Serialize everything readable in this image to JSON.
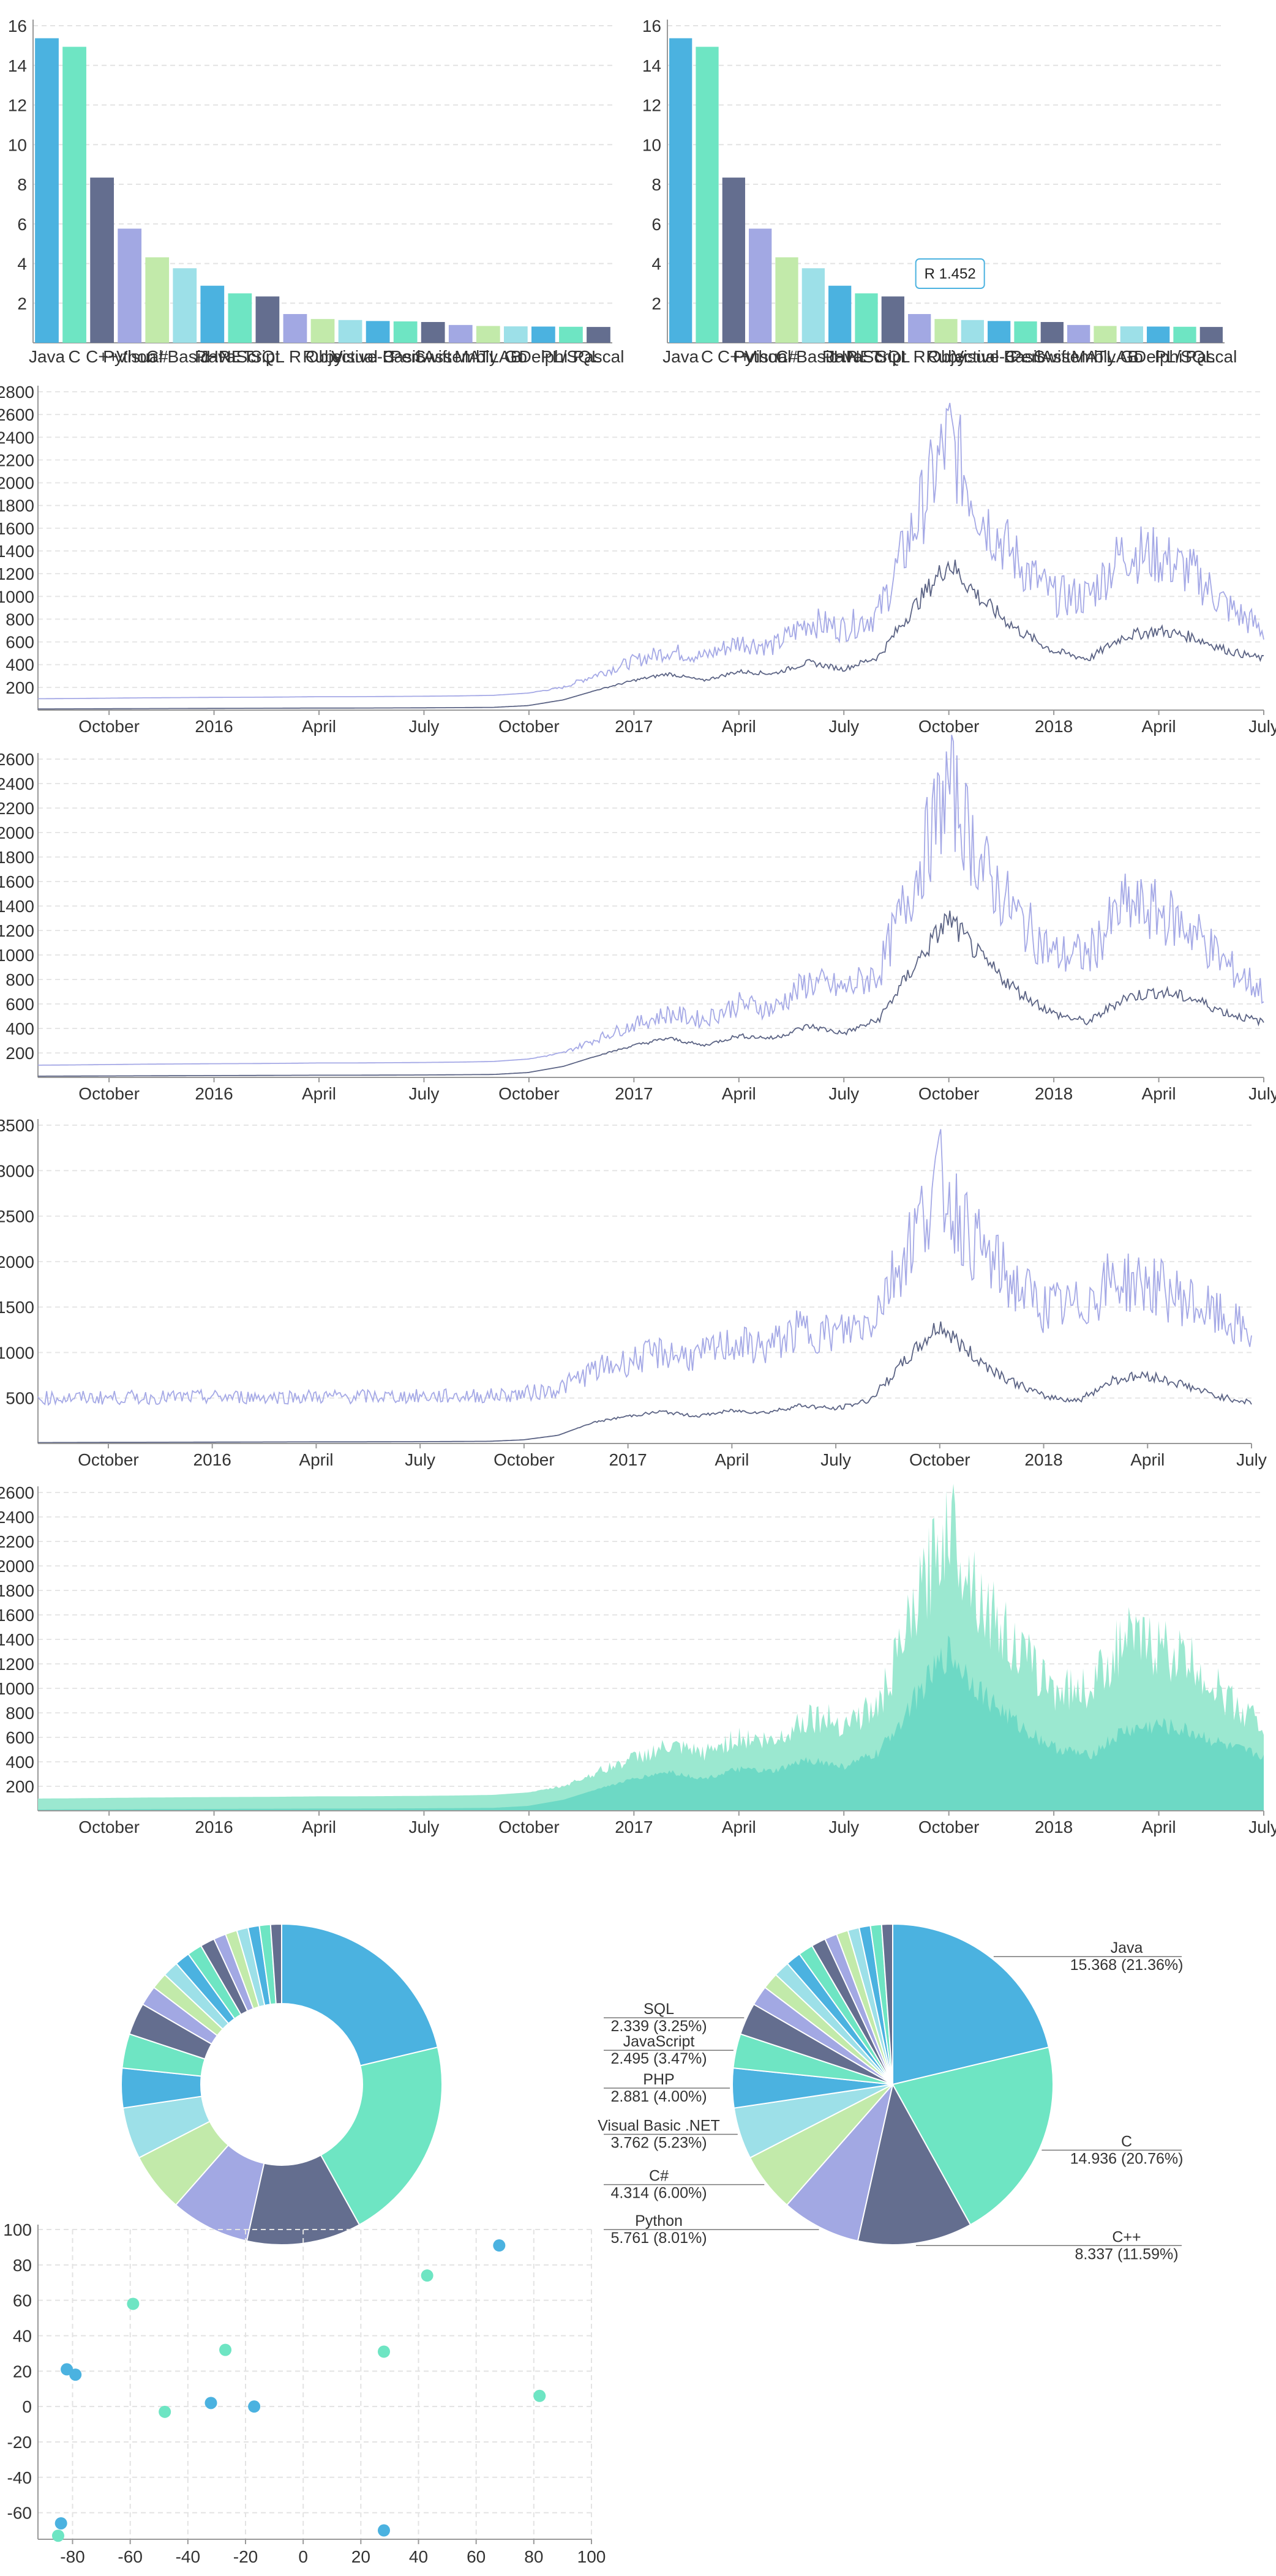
{
  "colors": {
    "palette": [
      "#4bb2e0",
      "#6ee5c3",
      "#646e8f",
      "#a2a8e3",
      "#c2eaaa",
      "#9de0e8"
    ],
    "line_light": "#a5a9e6",
    "line_dark": "#5b6384",
    "area_light": "#9be8d0",
    "area_dark": "#6dd9c5",
    "tooltip_border": "#4bb2e0"
  },
  "tooltip": {
    "label": "R 1.452"
  },
  "languages": [
    {
      "name": "Java",
      "value": 15.368,
      "pct": "21.36%"
    },
    {
      "name": "C",
      "value": 14.936,
      "pct": "20.76%"
    },
    {
      "name": "C++",
      "value": 8.337,
      "pct": "11.59%"
    },
    {
      "name": "Python",
      "value": 5.761,
      "pct": "8.01%"
    },
    {
      "name": "C#",
      "value": 4.314,
      "pct": "6.00%"
    },
    {
      "name": "Visual Basic .NET",
      "value": 3.762,
      "pct": "5.23%"
    },
    {
      "name": "PHP",
      "value": 2.881,
      "pct": "4.00%"
    },
    {
      "name": "JavaScript",
      "value": 2.495,
      "pct": "3.47%"
    },
    {
      "name": "SQL",
      "value": 2.339,
      "pct": "3.25%"
    },
    {
      "name": "R",
      "value": 1.452,
      "pct": ""
    },
    {
      "name": "Ruby",
      "value": 1.2,
      "pct": ""
    },
    {
      "name": "Objective-C",
      "value": 1.15,
      "pct": ""
    },
    {
      "name": "Visual Basic",
      "value": 1.1,
      "pct": ""
    },
    {
      "name": "Perl",
      "value": 1.08,
      "pct": ""
    },
    {
      "name": "Swift",
      "value": 1.05,
      "pct": ""
    },
    {
      "name": "Assembly",
      "value": 0.9,
      "pct": ""
    },
    {
      "name": "MATLAB",
      "value": 0.85,
      "pct": ""
    },
    {
      "name": "Go",
      "value": 0.83,
      "pct": ""
    },
    {
      "name": "Delphi",
      "value": 0.82,
      "pct": ""
    },
    {
      "name": "PL/SQL",
      "value": 0.81,
      "pct": ""
    },
    {
      "name": "Pascal",
      "value": 0.8,
      "pct": ""
    }
  ],
  "chart_data": [
    {
      "type": "bar",
      "id": "bar1",
      "categories": [
        "Java",
        "C",
        "C++",
        "Python",
        "C#",
        "Visual Basic .NET",
        "PHP",
        "JavaScript",
        "SQL",
        "R",
        "Ruby",
        "Objective-C",
        "Visual Basic",
        "Perl",
        "Swift",
        "Assembly",
        "MATLAB",
        "Go",
        "Delphi",
        "PL/SQL",
        "Pascal"
      ],
      "values": [
        15.368,
        14.936,
        8.337,
        5.761,
        4.314,
        3.762,
        2.881,
        2.495,
        2.339,
        1.452,
        1.2,
        1.15,
        1.1,
        1.08,
        1.05,
        0.9,
        0.85,
        0.83,
        0.82,
        0.81,
        0.8
      ],
      "y_ticks": [
        2,
        4,
        6,
        8,
        10,
        12,
        14,
        16
      ],
      "ylim": [
        0,
        16
      ],
      "grid": true
    },
    {
      "type": "bar",
      "id": "bar2",
      "categories": [
        "Java",
        "C",
        "C++",
        "Python",
        "C#",
        "Visual Basic .NET",
        "PHP",
        "JavaScript",
        "SQL",
        "R",
        "Ruby",
        "Objective-C",
        "Visual Basic",
        "Perl",
        "Swift",
        "Assembly",
        "MATLAB",
        "Go",
        "Delphi",
        "PL/SQL",
        "Pascal"
      ],
      "values": [
        15.368,
        14.936,
        8.337,
        5.761,
        4.314,
        3.762,
        2.881,
        2.495,
        2.339,
        1.452,
        1.2,
        1.15,
        1.1,
        1.08,
        1.05,
        0.9,
        0.85,
        0.83,
        0.82,
        0.81,
        0.8
      ],
      "y_ticks": [
        2,
        4,
        6,
        8,
        10,
        12,
        14,
        16
      ],
      "ylim": [
        0,
        16
      ],
      "highlighted": "R",
      "grid": true
    },
    {
      "type": "line",
      "id": "line1",
      "x_ticks": [
        "October",
        "2016",
        "April",
        "July",
        "October",
        "2017",
        "April",
        "July",
        "October",
        "2018",
        "April",
        "July"
      ],
      "y_ticks": [
        200,
        400,
        600,
        800,
        1000,
        1200,
        1400,
        1600,
        1800,
        2000,
        2200,
        2400,
        2600,
        2800
      ],
      "ylim": [
        0,
        2800
      ],
      "x_range": [
        "2015-08",
        "2018-07"
      ],
      "series": [
        {
          "color": "light",
          "values": [
            100,
            102,
            105,
            108,
            110,
            112,
            113,
            115,
            118,
            118,
            120,
            122,
            125,
            130,
            150,
            200,
            320,
            430,
            520,
            470,
            600,
            560,
            780,
            720,
            850,
            1600,
            2400,
            1700,
            1300,
            1000,
            1000,
            1400,
            1350,
            1200,
            900,
            700
          ]
        },
        {
          "color": "dark",
          "values": [
            10,
            11,
            12,
            13,
            14,
            15,
            16,
            17,
            18,
            18,
            19,
            20,
            22,
            24,
            40,
            90,
            180,
            260,
            320,
            260,
            340,
            320,
            420,
            360,
            470,
            900,
            1300,
            950,
            700,
            520,
            450,
            650,
            700,
            640,
            520,
            450
          ]
        }
      ]
    },
    {
      "type": "line",
      "id": "line2",
      "x_ticks": [
        "October",
        "2016",
        "April",
        "July",
        "October",
        "2017",
        "April",
        "July",
        "October",
        "2018",
        "April",
        "July"
      ],
      "y_ticks": [
        200,
        400,
        600,
        800,
        1000,
        1200,
        1400,
        1600,
        1800,
        2000,
        2200,
        2400,
        2600
      ],
      "ylim": [
        0,
        2600
      ],
      "x_range": [
        "2015-08",
        "2018-07"
      ],
      "series": [
        {
          "color": "light",
          "values": [
            100,
            102,
            105,
            108,
            110,
            112,
            113,
            115,
            118,
            118,
            120,
            122,
            125,
            130,
            150,
            200,
            320,
            430,
            520,
            470,
            600,
            560,
            780,
            720,
            850,
            1600,
            2400,
            1700,
            1300,
            1000,
            1000,
            1400,
            1350,
            1200,
            900,
            700
          ]
        },
        {
          "color": "dark",
          "values": [
            10,
            11,
            12,
            13,
            14,
            15,
            16,
            17,
            18,
            18,
            19,
            20,
            22,
            24,
            40,
            90,
            180,
            260,
            320,
            260,
            340,
            320,
            420,
            360,
            470,
            900,
            1300,
            950,
            700,
            520,
            450,
            650,
            700,
            640,
            520,
            450
          ]
        }
      ]
    },
    {
      "type": "line",
      "id": "line3",
      "x_ticks": [
        "October",
        "2016",
        "April",
        "July",
        "October",
        "2017",
        "April",
        "July",
        "October",
        "2018",
        "April",
        "July"
      ],
      "y_ticks": [
        500,
        1000,
        1500,
        2000,
        2500,
        3000,
        3500
      ],
      "ylim": [
        0,
        3500
      ],
      "x_range": [
        "2015-08",
        "2018-07"
      ],
      "series": [
        {
          "color": "light",
          "values": [
            500,
            502,
            504,
            506,
            508,
            510,
            512,
            513,
            515,
            515,
            516,
            518,
            520,
            525,
            545,
            600,
            800,
            900,
            1000,
            950,
            1100,
            1050,
            1250,
            1200,
            1350,
            2100,
            2900,
            2200,
            1800,
            1500,
            1500,
            1800,
            1750,
            1600,
            1400,
            1200
          ]
        },
        {
          "color": "dark",
          "values": [
            10,
            11,
            12,
            13,
            14,
            15,
            16,
            17,
            18,
            18,
            19,
            20,
            22,
            24,
            40,
            90,
            230,
            300,
            350,
            300,
            360,
            340,
            420,
            380,
            480,
            900,
            1300,
            950,
            700,
            520,
            470,
            700,
            750,
            650,
            520,
            450
          ]
        }
      ]
    },
    {
      "type": "area",
      "id": "area1",
      "x_ticks": [
        "October",
        "2016",
        "April",
        "July",
        "October",
        "2017",
        "April",
        "July",
        "October",
        "2018",
        "April",
        "July"
      ],
      "y_ticks": [
        200,
        400,
        600,
        800,
        1000,
        1200,
        1400,
        1600,
        1800,
        2000,
        2200,
        2400,
        2600
      ],
      "ylim": [
        0,
        2600
      ],
      "x_range": [
        "2015-08",
        "2018-07"
      ],
      "series": [
        {
          "color": "area_light",
          "values": [
            100,
            102,
            105,
            108,
            110,
            112,
            113,
            115,
            118,
            118,
            120,
            122,
            125,
            130,
            150,
            200,
            320,
            430,
            520,
            470,
            600,
            560,
            780,
            720,
            850,
            1600,
            2400,
            1700,
            1300,
            1000,
            1000,
            1400,
            1350,
            1200,
            900,
            700
          ]
        },
        {
          "color": "area_dark",
          "values": [
            10,
            11,
            12,
            13,
            14,
            15,
            16,
            17,
            18,
            18,
            19,
            20,
            22,
            24,
            40,
            90,
            180,
            260,
            320,
            260,
            340,
            320,
            420,
            360,
            470,
            900,
            1300,
            950,
            700,
            520,
            450,
            650,
            700,
            640,
            520,
            450
          ]
        }
      ]
    },
    {
      "type": "pie",
      "id": "donut1",
      "donut": true,
      "labels": false
    },
    {
      "type": "pie",
      "id": "pie1",
      "donut": false,
      "labels": true,
      "labeled_count": 9
    },
    {
      "type": "scatter",
      "id": "scatter1",
      "x_ticks": [
        -80,
        -60,
        -40,
        -20,
        0,
        20,
        40,
        60,
        80,
        100
      ],
      "y_ticks": [
        -60,
        -40,
        -20,
        0,
        20,
        40,
        60,
        80,
        100
      ],
      "xlim": [
        -92,
        100
      ],
      "ylim": [
        -75,
        100
      ],
      "grid": true,
      "series": [
        {
          "color": "#4bb2e0",
          "points": [
            [
              68,
              91
            ],
            [
              -82,
              21
            ],
            [
              -79,
              18
            ],
            [
              -32,
              2
            ],
            [
              -17,
              0
            ],
            [
              28,
              -70
            ],
            [
              -84,
              -66
            ]
          ]
        },
        {
          "color": "#6ee5c3",
          "points": [
            [
              -59,
              58
            ],
            [
              43,
              74
            ],
            [
              -27,
              32
            ],
            [
              28,
              31
            ],
            [
              -48,
              -3
            ],
            [
              82,
              6
            ],
            [
              -85,
              -73
            ]
          ]
        }
      ]
    }
  ]
}
